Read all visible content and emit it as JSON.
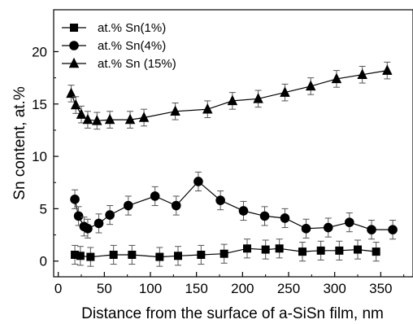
{
  "chart_data": {
    "type": "line",
    "title": "",
    "xlabel": "Distance from the surface of a-SiSn film, nm",
    "ylabel": "Sn content, at.%",
    "xlim": [
      -5,
      385
    ],
    "ylim": [
      -1.5,
      24
    ],
    "xticks": [
      0,
      50,
      100,
      150,
      200,
      250,
      300,
      350
    ],
    "yticks": [
      0,
      5,
      10,
      15,
      20
    ],
    "grid": false,
    "legend_position": "top-left",
    "series": [
      {
        "name": "at.% Sn(1%)",
        "marker": "square",
        "color": "#000000",
        "x": [
          18,
          24,
          35,
          60,
          80,
          110,
          130,
          155,
          180,
          205,
          225,
          240,
          265,
          285,
          305,
          325,
          345
        ],
        "y": [
          0.6,
          0.5,
          0.4,
          0.6,
          0.6,
          0.4,
          0.5,
          0.6,
          0.7,
          1.2,
          1.1,
          1.2,
          0.9,
          1.0,
          1.0,
          1.1,
          0.9
        ],
        "err": [
          0.9,
          0.9,
          0.9,
          0.9,
          0.9,
          0.9,
          0.9,
          0.9,
          0.9,
          0.9,
          0.9,
          0.9,
          0.9,
          0.9,
          0.9,
          0.9,
          0.9
        ]
      },
      {
        "name": "at.% Sn(4%)",
        "marker": "circle",
        "color": "#000000",
        "x": [
          18,
          22,
          28,
          32,
          44,
          56,
          76,
          105,
          128,
          152,
          176,
          201,
          224,
          246,
          269,
          293,
          316,
          340,
          363
        ],
        "y": [
          5.9,
          4.3,
          3.3,
          3.1,
          3.6,
          4.4,
          5.3,
          6.2,
          5.3,
          7.6,
          5.8,
          4.8,
          4.3,
          4.1,
          3.1,
          3.2,
          3.7,
          3.0,
          3.0
        ],
        "err": [
          0.9,
          0.9,
          0.9,
          0.9,
          0.9,
          0.9,
          0.9,
          0.9,
          0.9,
          0.9,
          0.9,
          0.9,
          0.9,
          0.9,
          0.9,
          0.9,
          0.9,
          0.9,
          0.9
        ]
      },
      {
        "name": "at.% Sn (15%)",
        "marker": "triangle",
        "color": "#000000",
        "x": [
          14,
          19,
          25,
          32,
          42,
          56,
          78,
          93,
          127,
          162,
          189,
          217,
          246,
          274,
          302,
          330,
          357
        ],
        "y": [
          16.0,
          14.9,
          14.0,
          13.5,
          13.4,
          13.5,
          13.5,
          13.7,
          14.3,
          14.5,
          15.3,
          15.5,
          16.1,
          16.7,
          17.4,
          17.8,
          18.2
        ],
        "err": [
          0.8,
          0.8,
          0.8,
          0.8,
          0.8,
          0.8,
          0.8,
          0.8,
          0.8,
          0.8,
          0.8,
          0.8,
          0.8,
          0.8,
          0.8,
          0.8,
          0.8
        ]
      }
    ]
  }
}
